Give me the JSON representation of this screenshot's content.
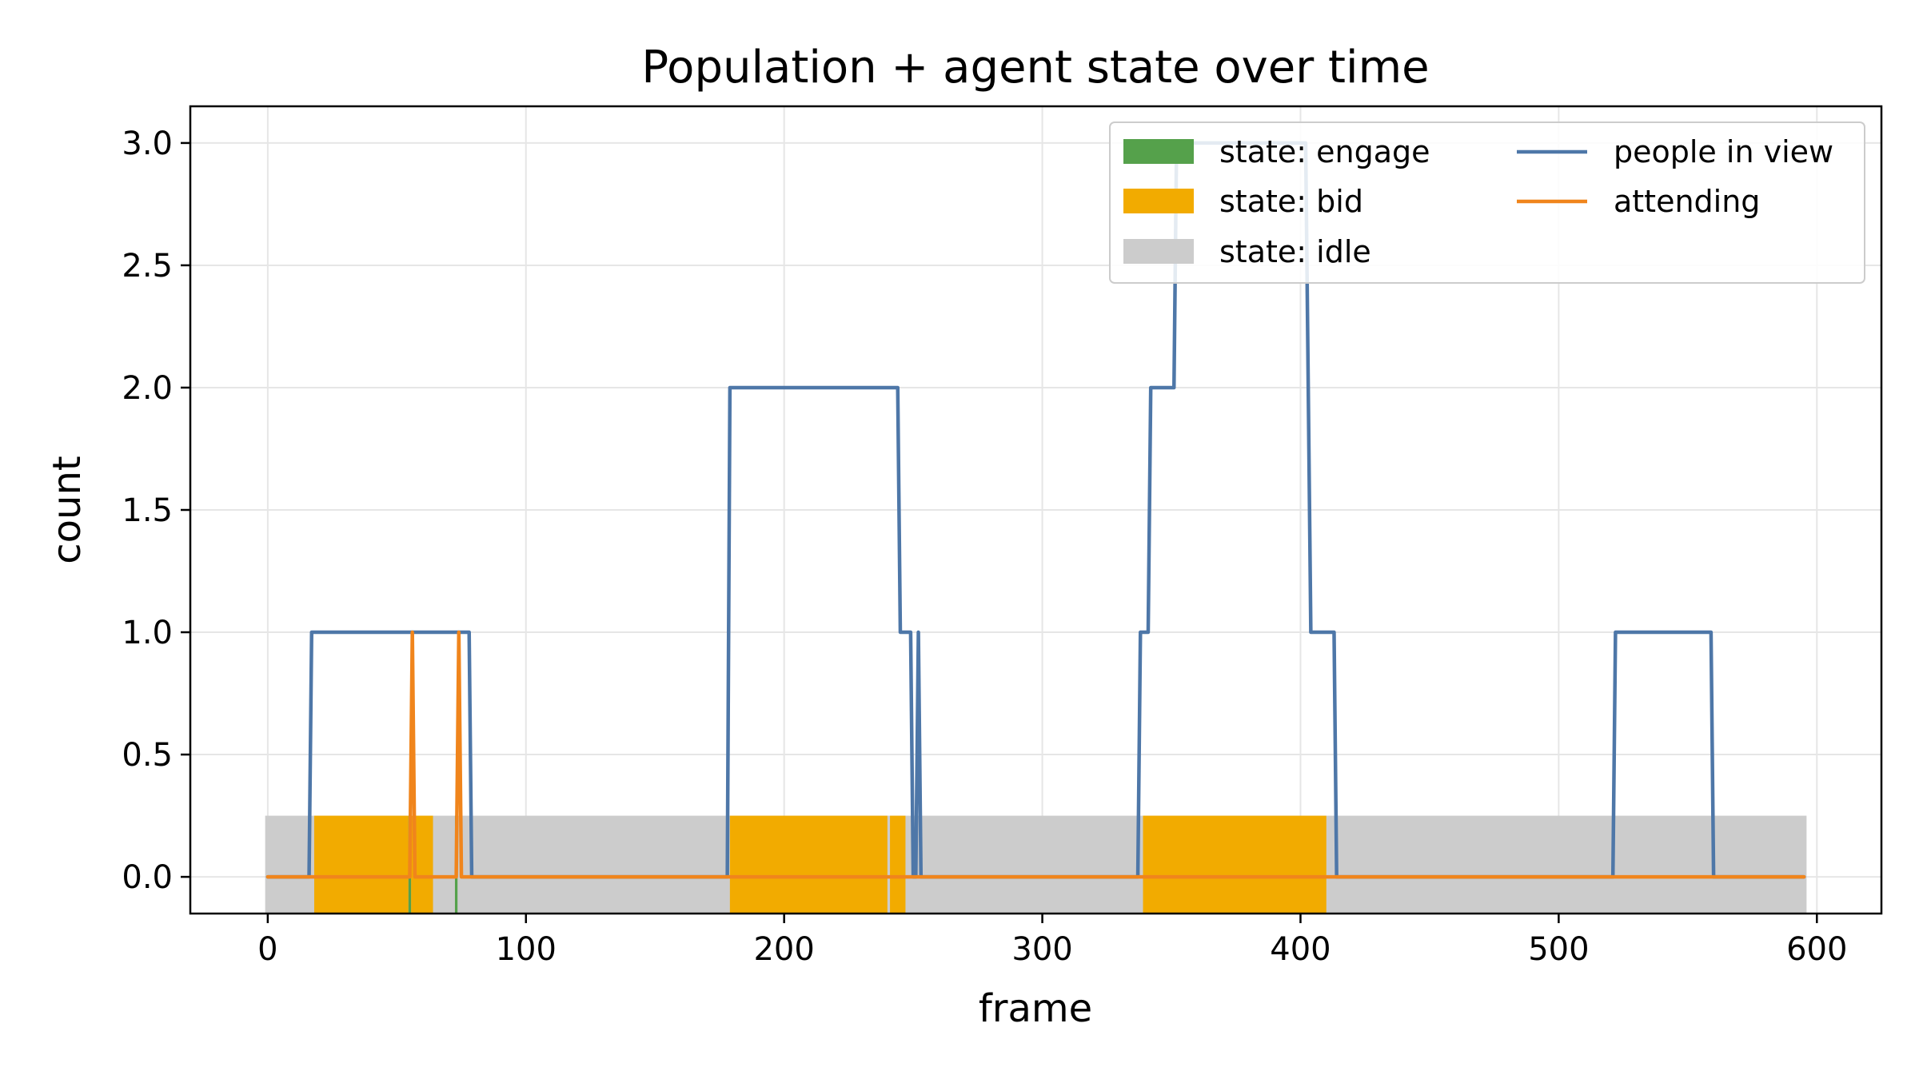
{
  "chart_data": {
    "type": "line",
    "title": "Population + agent state over time",
    "xlabel": "frame",
    "ylabel": "count",
    "xlim": [
      -30,
      625
    ],
    "ylim": [
      -0.15,
      3.15
    ],
    "xticks": [
      0,
      100,
      200,
      300,
      400,
      500,
      600
    ],
    "yticks": [
      0.0,
      0.5,
      1.0,
      1.5,
      2.0,
      2.5,
      3.0
    ],
    "xtick_labels": [
      "0",
      "100",
      "200",
      "300",
      "400",
      "500",
      "600"
    ],
    "ytick_labels": [
      "0.0",
      "0.5",
      "1.0",
      "1.5",
      "2.0",
      "2.5",
      "3.0"
    ],
    "grid": true,
    "legend": {
      "placement": "top-right",
      "columns": 2
    },
    "state_band": {
      "y_bottom": -0.15,
      "y_top": 0.25
    },
    "states": [
      {
        "name": "state: engage",
        "color": "#55a14b",
        "segments": [
          [
            54.5,
            55.5
          ],
          [
            72.5,
            73.5
          ]
        ]
      },
      {
        "name": "state: bid",
        "color": "#f2ab00",
        "segments": [
          [
            18,
            54.5
          ],
          [
            55.5,
            64
          ],
          [
            179,
            240
          ],
          [
            241,
            247
          ],
          [
            339,
            410
          ]
        ]
      },
      {
        "name": "state: idle",
        "color": "#cccccc",
        "segments": [
          [
            -1,
            596
          ]
        ]
      }
    ],
    "series": [
      {
        "name": "people in view",
        "color": "#4e77a8",
        "points": [
          [
            0,
            0
          ],
          [
            16,
            0
          ],
          [
            17,
            1
          ],
          [
            78,
            1
          ],
          [
            79,
            0
          ],
          [
            178,
            0
          ],
          [
            179,
            2
          ],
          [
            244,
            2
          ],
          [
            245,
            1
          ],
          [
            249,
            1
          ],
          [
            250,
            0
          ],
          [
            251,
            0
          ],
          [
            252,
            1
          ],
          [
            253,
            0
          ],
          [
            337,
            0
          ],
          [
            338,
            1
          ],
          [
            341,
            1
          ],
          [
            342,
            2
          ],
          [
            351,
            2
          ],
          [
            352,
            3
          ],
          [
            353,
            3
          ],
          [
            402,
            3
          ],
          [
            403,
            2
          ],
          [
            404,
            1
          ],
          [
            413,
            1
          ],
          [
            414,
            0
          ],
          [
            521,
            0
          ],
          [
            522,
            1
          ],
          [
            559,
            1
          ],
          [
            560,
            0
          ],
          [
            595,
            0
          ]
        ]
      },
      {
        "name": "attending",
        "color": "#f0851c",
        "points": [
          [
            0,
            0
          ],
          [
            55,
            0
          ],
          [
            56,
            1
          ],
          [
            57,
            0
          ],
          [
            73,
            0
          ],
          [
            74,
            1
          ],
          [
            75,
            0
          ],
          [
            595,
            0
          ]
        ]
      }
    ]
  }
}
